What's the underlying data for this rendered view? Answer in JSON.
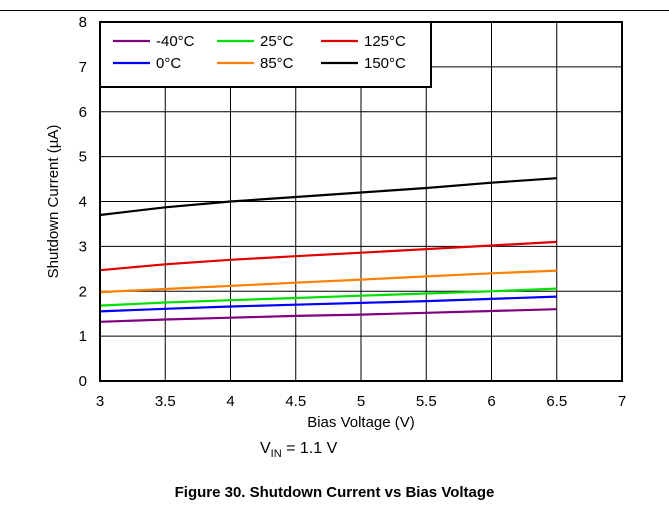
{
  "chart_data": {
    "type": "line",
    "xlabel": "Bias Voltage (V)",
    "ylabel": "Shutdown Current (µA)",
    "xlim": [
      3,
      7
    ],
    "ylim": [
      0,
      8
    ],
    "x_ticks": [
      "3",
      "3.5",
      "4",
      "4.5",
      "5",
      "5.5",
      "6",
      "6.5",
      "7"
    ],
    "y_ticks": [
      "0",
      "1",
      "2",
      "3",
      "4",
      "5",
      "6",
      "7",
      "8"
    ],
    "grid": true,
    "legend_position": "top-left",
    "series": [
      {
        "name": "-40°C",
        "color": "#800080",
        "x": [
          3,
          3.5,
          4,
          4.5,
          5,
          5.5,
          6,
          6.5
        ],
        "y": [
          1.32,
          1.37,
          1.41,
          1.45,
          1.48,
          1.52,
          1.56,
          1.6
        ]
      },
      {
        "name": "0°C",
        "color": "#0000ff",
        "x": [
          3,
          3.5,
          4,
          4.5,
          5,
          5.5,
          6,
          6.5
        ],
        "y": [
          1.55,
          1.61,
          1.66,
          1.7,
          1.74,
          1.78,
          1.83,
          1.88
        ]
      },
      {
        "name": "25°C",
        "color": "#00e000",
        "x": [
          3,
          3.5,
          4,
          4.5,
          5,
          5.5,
          6,
          6.5
        ],
        "y": [
          1.68,
          1.75,
          1.8,
          1.85,
          1.9,
          1.95,
          2.0,
          2.06
        ]
      },
      {
        "name": "85°C",
        "color": "#ff7f00",
        "x": [
          3,
          3.5,
          4,
          4.5,
          5,
          5.5,
          6,
          6.5
        ],
        "y": [
          1.98,
          2.05,
          2.12,
          2.19,
          2.26,
          2.33,
          2.4,
          2.46
        ]
      },
      {
        "name": "125°C",
        "color": "#e00000",
        "x": [
          3,
          3.5,
          4,
          4.5,
          5,
          5.5,
          6,
          6.5
        ],
        "y": [
          2.47,
          2.6,
          2.7,
          2.78,
          2.86,
          2.94,
          3.02,
          3.1
        ]
      },
      {
        "name": "150°C",
        "color": "#000000",
        "x": [
          3,
          3.5,
          4,
          4.5,
          5,
          5.5,
          6,
          6.5
        ],
        "y": [
          3.7,
          3.87,
          4.0,
          4.1,
          4.2,
          4.3,
          4.42,
          4.52
        ]
      }
    ]
  },
  "note": {
    "prefix": "V",
    "subscript": "IN",
    "suffix": " = 1.1 V"
  },
  "caption": "Figure 30. Shutdown Current vs Bias Voltage"
}
